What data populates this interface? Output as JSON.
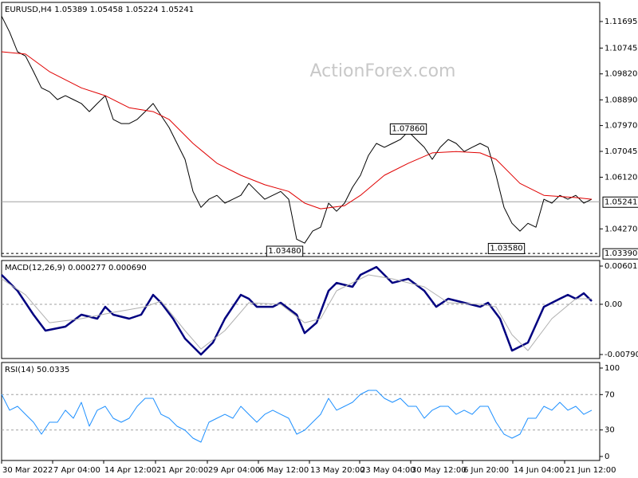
{
  "chart_data": [
    {
      "type": "line",
      "title": "EURUSD,H4  1.05389 1.05458 1.05224 1.05241",
      "watermark": "ActionForex.com",
      "xlim": [
        0,
        75
      ],
      "ylim": [
        1.0328,
        1.1238
      ],
      "yticks": [
        1.11695,
        1.10745,
        {
          "value": 1.0982,
          "label": "1.09820"
        },
        {
          "value": 1.0889,
          "label": "1.08890"
        },
        {
          "value": 1.0797,
          "label": "1.07970"
        },
        1.07045,
        {
          "value": 1.0612,
          "label": "1.06120"
        },
        {
          "value": 1.0427,
          "label": "1.04270"
        }
      ],
      "levels": [
        {
          "value": 1.05241,
          "label": "1.05241",
          "style": "solid"
        },
        {
          "value": 1.0339,
          "label": "1.03390",
          "style": "dashed"
        }
      ],
      "annotations": [
        {
          "x": 51,
          "value": 1.0786,
          "label": "1.07860"
        },
        {
          "x": 35.5,
          "value": 1.0348,
          "label": "1.03480"
        },
        {
          "x": 63.3,
          "value": 1.0358,
          "label": "1.03580"
        }
      ],
      "series": [
        {
          "color": "#000000",
          "width": 1,
          "values": [
            1.1189,
            1.1132,
            1.1061,
            1.1046,
            1.099,
            1.0932,
            1.0918,
            1.089,
            1.0904,
            1.089,
            1.0876,
            1.0847,
            1.0876,
            1.0904,
            1.0819,
            1.0804,
            1.0804,
            1.0819,
            1.0847,
            1.0876,
            1.0833,
            1.079,
            1.0733,
            1.0676,
            1.0561,
            1.0504,
            1.0533,
            1.0547,
            1.0519,
            1.0533,
            1.0547,
            1.059,
            1.0561,
            1.0533,
            1.0547,
            1.0561,
            1.0533,
            1.039,
            1.0376,
            1.0419,
            1.0433,
            1.0519,
            1.049,
            1.0519,
            1.0576,
            1.0619,
            1.069,
            1.0733,
            1.0719,
            1.0733,
            1.0747,
            1.0776,
            1.0747,
            1.0719,
            1.0676,
            1.0719,
            1.0747,
            1.0733,
            1.0704,
            1.0719,
            1.0733,
            1.0719,
            1.0619,
            1.0504,
            1.0447,
            1.0419,
            1.0447,
            1.0433,
            1.0533,
            1.0519,
            1.0547,
            1.0533,
            1.0547,
            1.0519,
            1.0533
          ]
        },
        {
          "color": "#e00000",
          "width": 1,
          "x": [
            0,
            3,
            6,
            10,
            13,
            16,
            19,
            21,
            24,
            27,
            30,
            33,
            36,
            38,
            40,
            43,
            45,
            48,
            51,
            54,
            57,
            60,
            62,
            65,
            68,
            72,
            74
          ],
          "values": [
            1.1061,
            1.1053,
            1.099,
            1.0932,
            1.0904,
            1.0861,
            1.0847,
            1.0819,
            1.0733,
            1.0662,
            1.0619,
            1.0585,
            1.0561,
            1.0519,
            1.0499,
            1.051,
            1.0547,
            1.0619,
            1.0662,
            1.0699,
            1.0704,
            1.0699,
            1.0676,
            1.059,
            1.0547,
            1.0539,
            1.0533
          ]
        }
      ]
    },
    {
      "type": "line",
      "title": "MACD(12,26,9) 0.000277 0.000690",
      "xlim": [
        0,
        75
      ],
      "ylim": [
        -0.008534,
        0.00689
      ],
      "yticks": [
        0.006012,
        {
          "value": 0,
          "label": "0.00"
        },
        -0.007907
      ],
      "levels": [
        0
      ],
      "series": [
        {
          "color": "#000080",
          "width": 2.5,
          "x": [
            0,
            2,
            4,
            5.5,
            8,
            10,
            12,
            13,
            14,
            16,
            17.5,
            19,
            20,
            21.5,
            23,
            25,
            26.5,
            28,
            30,
            31,
            32,
            34,
            35,
            37,
            38,
            39.5,
            41,
            42,
            44,
            45,
            47,
            49,
            51,
            53,
            54.5,
            56,
            58,
            60,
            61,
            62.5,
            64,
            66,
            68,
            70,
            71,
            72,
            73,
            74
          ],
          "values": [
            0.00463,
            0.00212,
            -0.00164,
            -0.00415,
            -0.00352,
            -0.00164,
            -0.00227,
            -0.00039,
            -0.00164,
            -0.00227,
            -0.00164,
            0.00149,
            0.00024,
            -0.00227,
            -0.0054,
            -0.00791,
            -0.00603,
            -0.00227,
            0.00149,
            0.00087,
            -0.00039,
            -0.00039,
            0.00024,
            -0.00164,
            -0.00453,
            -0.0029,
            0.00212,
            0.00337,
            0.00275,
            0.00463,
            0.00588,
            0.00337,
            0.004,
            0.00212,
            -0.00039,
            0.00087,
            0.00024,
            -0.00039,
            0.00024,
            -0.00227,
            -0.00729,
            -0.00603,
            -0.00039,
            0.00087,
            0.00149,
            0.00087,
            0.00174,
            0.00049
          ]
        },
        {
          "color": "#b0b0b0",
          "width": 1,
          "x": [
            0,
            3,
            6,
            10,
            14,
            18,
            20,
            23,
            25,
            28,
            31,
            35,
            38,
            40,
            42,
            46,
            49,
            53,
            56,
            60,
            62,
            64,
            66,
            69,
            72,
            74
          ],
          "values": [
            0.004,
            0.00149,
            -0.0029,
            -0.00227,
            -0.00127,
            -0.00039,
            0.00049,
            -0.00415,
            -0.00704,
            -0.00415,
            0.00024,
            -1e-05,
            -0.0029,
            -0.00227,
            0.00212,
            0.00463,
            0.004,
            0.00275,
            0.00024,
            -1e-05,
            -0.00039,
            -0.00478,
            -0.00729,
            -0.00227,
            0.00087,
            0.00087
          ]
        }
      ]
    },
    {
      "type": "line",
      "title": "RSI(14) 50.0335",
      "xlim": [
        0,
        75
      ],
      "ylim": [
        -4.5,
        106.3
      ],
      "yticks": [
        100,
        70,
        30,
        0
      ],
      "levels": [
        70,
        30
      ],
      "xticks": [
        {
          "value": 0,
          "label": "30 Mar 2022"
        },
        {
          "value": 6.4,
          "label": "7 Apr 04:00"
        },
        {
          "value": 12.8,
          "label": "14 Apr 12:00"
        },
        {
          "value": 19.3,
          "label": "21 Apr 20:00"
        },
        {
          "value": 25.8,
          "label": "29 Apr 04:00"
        },
        {
          "value": 32.2,
          "label": "6 May 12:00"
        },
        {
          "value": 38.6,
          "label": "13 May 20:00"
        },
        {
          "value": 44.9,
          "label": "23 May 04:00"
        },
        {
          "value": 51.3,
          "label": "30 May 12:00"
        },
        {
          "value": 57.8,
          "label": "6 Jun 20:00"
        },
        {
          "value": 64.1,
          "label": "14 Jun 04:00"
        },
        {
          "value": 70.6,
          "label": "21 Jun 12:00"
        }
      ],
      "series": [
        {
          "color": "#1e90ff",
          "width": 1,
          "values": [
            70.3,
            52.3,
            56.8,
            47.7,
            38.7,
            25.2,
            38.7,
            38.7,
            52.3,
            43.2,
            61.3,
            34.2,
            52.3,
            56.8,
            43.2,
            38.7,
            43.2,
            56.8,
            65.8,
            65.8,
            47.7,
            43.2,
            34.2,
            29.7,
            20.7,
            16.2,
            38.7,
            43.2,
            47.7,
            43.2,
            56.8,
            47.7,
            38.7,
            47.7,
            52.3,
            47.7,
            43.2,
            25.2,
            29.7,
            38.7,
            47.7,
            65.8,
            52.3,
            56.8,
            61.3,
            70.3,
            74.8,
            74.8,
            65.8,
            61.3,
            65.8,
            56.8,
            56.8,
            43.2,
            52.3,
            56.8,
            56.8,
            47.7,
            52.3,
            47.7,
            56.8,
            56.8,
            38.7,
            25.2,
            20.7,
            25.2,
            43.2,
            43.2,
            56.8,
            52.3,
            61.3,
            52.3,
            56.8,
            47.7,
            52.3
          ]
        }
      ]
    }
  ]
}
